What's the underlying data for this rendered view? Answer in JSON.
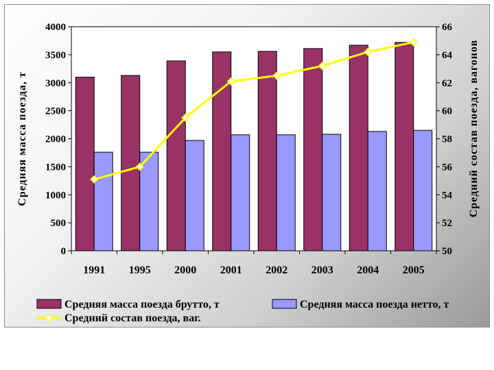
{
  "chart_data": {
    "type": "bar",
    "categories": [
      "1991",
      "1995",
      "2000",
      "2001",
      "2002",
      "2003",
      "2004",
      "2005"
    ],
    "series": [
      {
        "name": "Средняя масса поезда брутто, т",
        "type": "bar",
        "axis": "left",
        "color": "#993366",
        "values": [
          3100,
          3130,
          3390,
          3550,
          3560,
          3610,
          3670,
          3720
        ]
      },
      {
        "name": "Средняя масса поезда нетто, т",
        "type": "bar",
        "axis": "left",
        "color": "#9999ff",
        "values": [
          1760,
          1760,
          1970,
          2070,
          2070,
          2080,
          2130,
          2150
        ]
      },
      {
        "name": "Средний состав поезда, ваг.",
        "type": "line",
        "axis": "right",
        "color": "#ffff00",
        "values": [
          55.1,
          56.0,
          59.5,
          62.1,
          62.5,
          63.2,
          64.2,
          64.9
        ]
      }
    ],
    "ylabel": "Средняя масса поезда, т",
    "y2label": "Средний состав поезда, вагонов",
    "ylim": [
      0,
      4000
    ],
    "y2lim": [
      50,
      66
    ],
    "yticks": [
      "0",
      "500",
      "1000",
      "1500",
      "2000",
      "2500",
      "3000",
      "3500",
      "4000"
    ],
    "y2ticks": [
      "50",
      "52",
      "54",
      "56",
      "58",
      "60",
      "62",
      "64",
      "66"
    ],
    "grid": false,
    "legend_position": "bottom"
  }
}
